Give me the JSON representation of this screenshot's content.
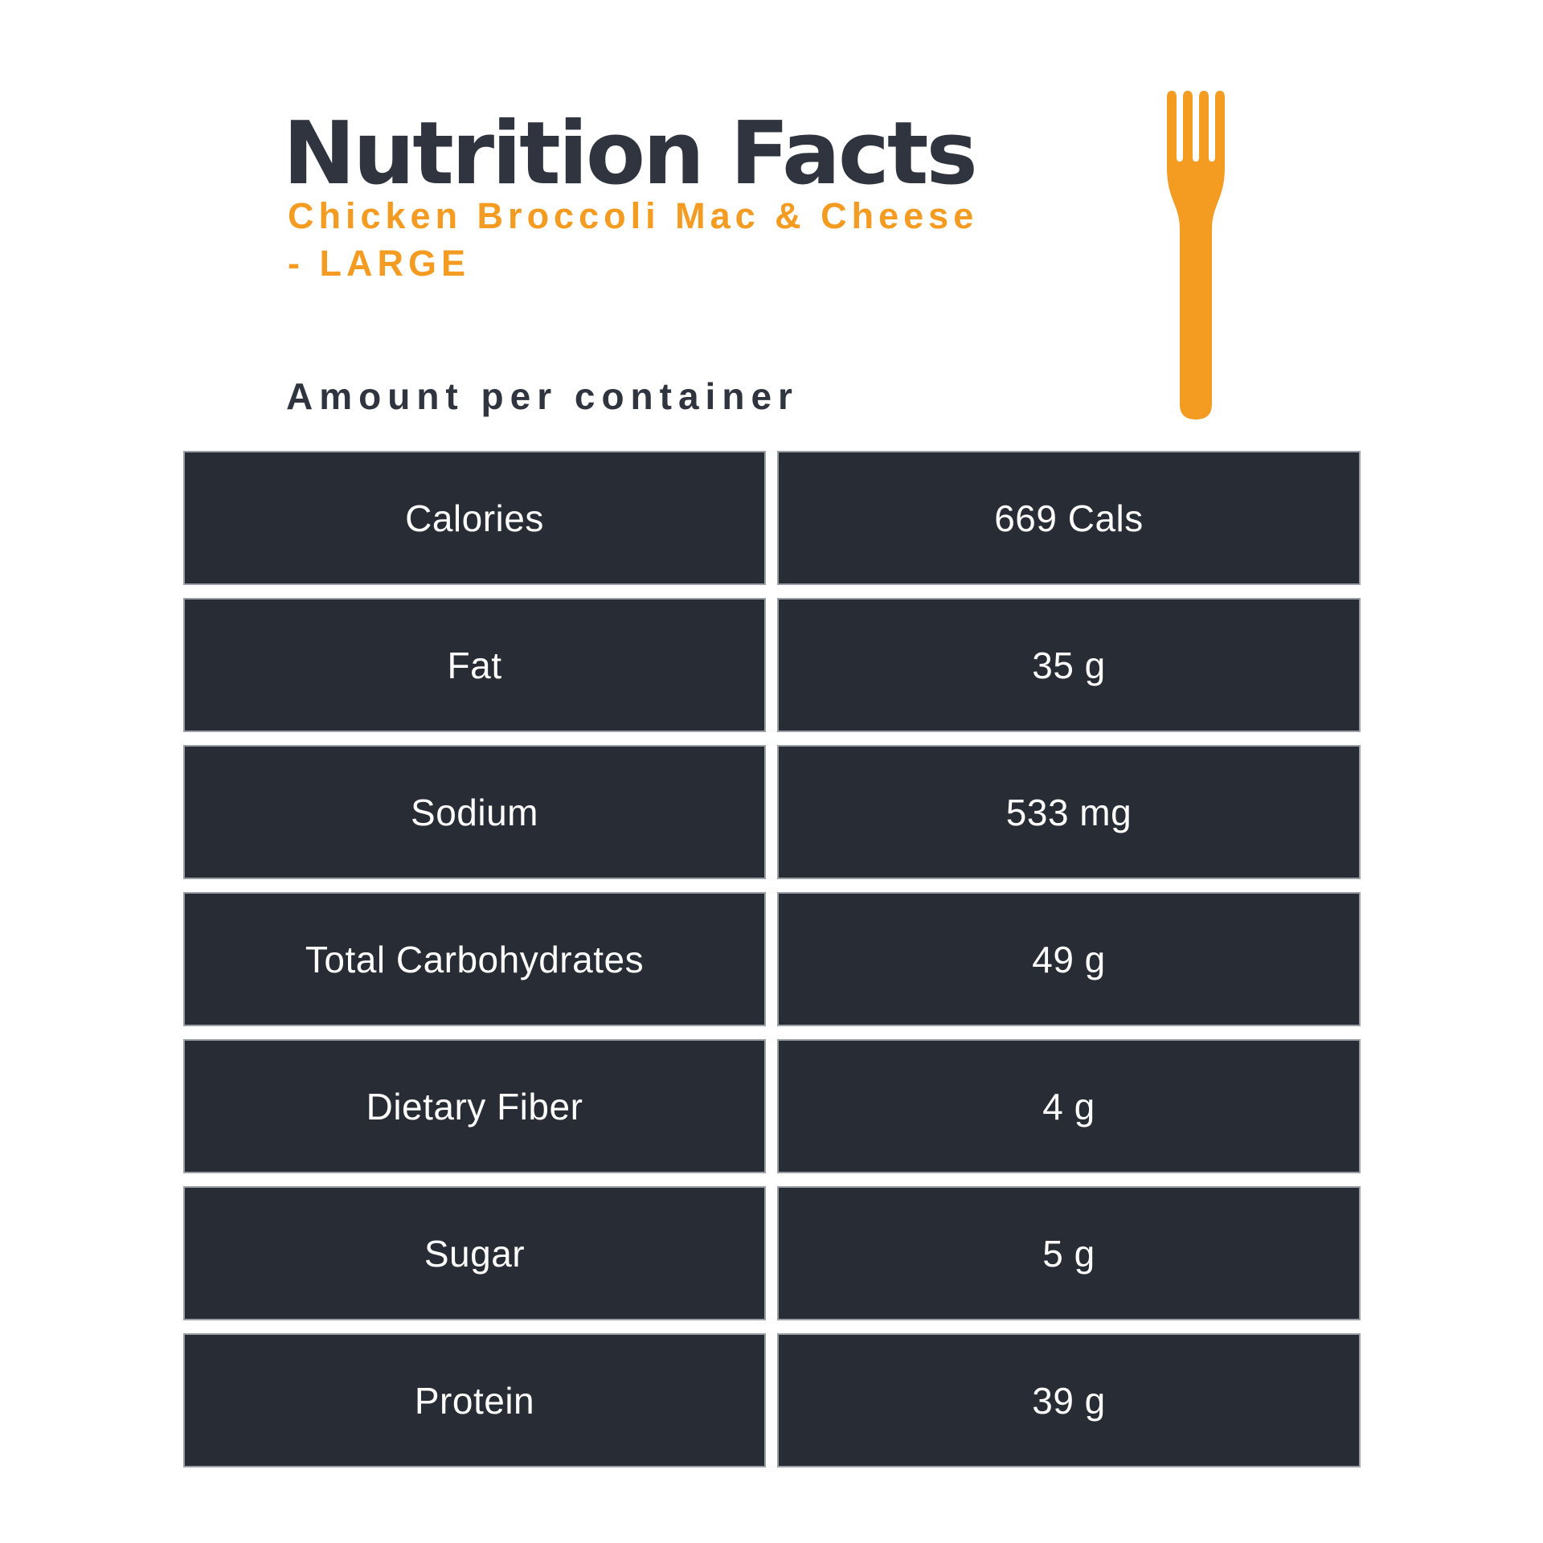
{
  "header": {
    "title": "Nutrition Facts",
    "product_name": "Chicken Broccoli Mac & Cheese - LARGE",
    "product_name_line1": "Chicken Broccoli Mac & Cheese",
    "product_name_line2": "- LARGE"
  },
  "amount_label": "Amount per container",
  "table": {
    "rows": [
      {
        "label": "Calories",
        "value": "669 Cals"
      },
      {
        "label": "Fat",
        "value": "35 g"
      },
      {
        "label": "Sodium",
        "value": "533 mg"
      },
      {
        "label": "Total Carbohydrates",
        "value": "49 g"
      },
      {
        "label": "Dietary Fiber",
        "value": "4 g"
      },
      {
        "label": "Sugar",
        "value": "5 g"
      },
      {
        "label": "Protein",
        "value": "39 g"
      }
    ]
  },
  "icons": {
    "fork": "fork-icon"
  },
  "colors": {
    "accent": "#F49B22",
    "heading": "#2F343E",
    "cell_background": "#282D35",
    "cell_border": "#9BA0A7",
    "cell_text": "#FFFFFF",
    "page_background": "#FFFFFF"
  }
}
